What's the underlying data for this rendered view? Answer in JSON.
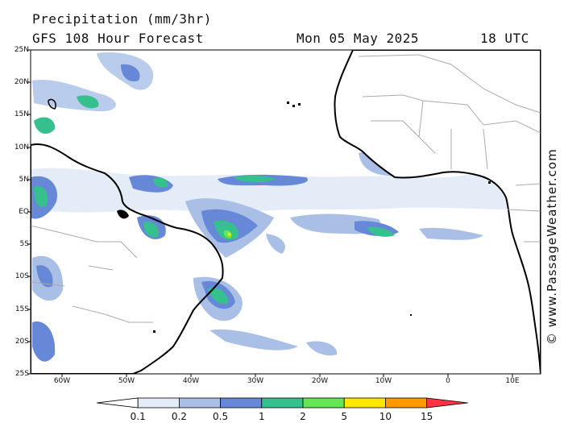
{
  "header": {
    "title": "Precipitation (mm/3hr)",
    "model": "GFS 108 Hour Forecast",
    "date": "Mon 05 May 2025",
    "time": "18 UTC"
  },
  "credit": "© www.PassageWeather.com",
  "latitude_labels": [
    "25N",
    "20N",
    "15N",
    "10N",
    "5N",
    "EQ",
    "5S",
    "10S",
    "15S",
    "20S",
    "25S"
  ],
  "longitude_labels": [
    "60W",
    "50W",
    "40W",
    "30W",
    "20W",
    "10W",
    "0",
    "10E"
  ],
  "legend": {
    "ticks": [
      "0.1",
      "0.2",
      "0.5",
      "1",
      "2",
      "5",
      "10",
      "15"
    ],
    "colors": [
      "#ffffff",
      "#e4ecf8",
      "#a9bfe6",
      "#6688d6",
      "#36c08e",
      "#66e655",
      "#ffe800",
      "#ff9900",
      "#ff3344"
    ]
  },
  "map_colors": {
    "ocean": "#ffffff",
    "land": "#ffffff",
    "coastline": "#000000",
    "borders": "#aaaaaa"
  }
}
